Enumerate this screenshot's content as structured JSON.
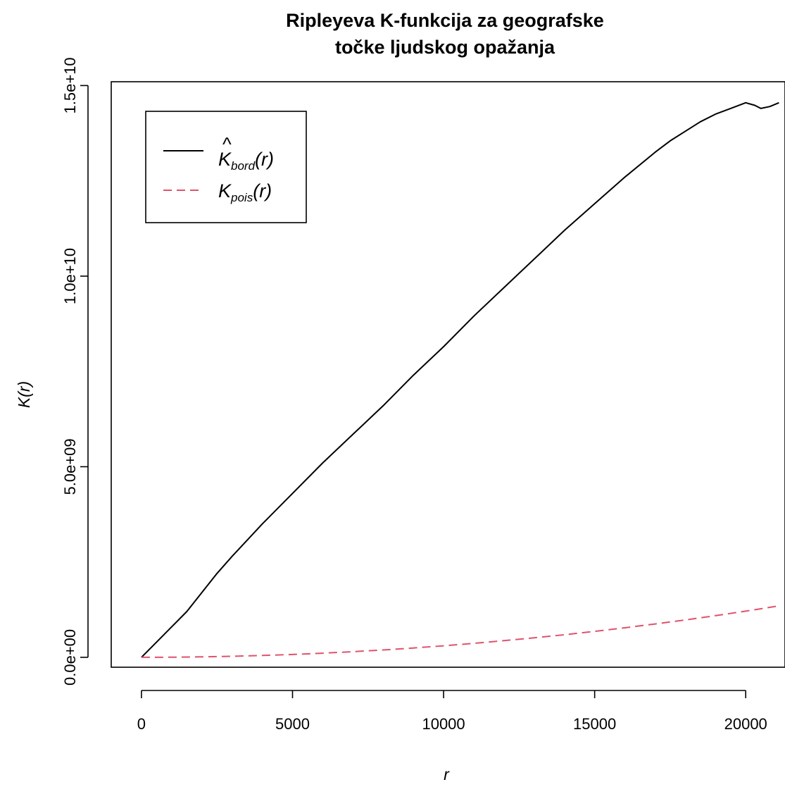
{
  "chart_data": {
    "type": "line",
    "title_lines": [
      "Ripleyeva K-funkcija za geografske",
      "točke ljudskog opažanja"
    ],
    "xlabel": "r",
    "ylabel": "K(r)",
    "xlim": [
      -1000,
      21300
    ],
    "ylim": [
      -260000000.0,
      15100000000.0
    ],
    "x_ticks": [
      0,
      5000,
      10000,
      15000,
      20000
    ],
    "x_tick_labels": [
      "0",
      "5000",
      "10000",
      "15000",
      "20000"
    ],
    "y_ticks": [
      0,
      5000000000,
      10000000000,
      15000000000
    ],
    "y_tick_labels": [
      "0.0e+00",
      "5.0e+09",
      "1.0e+10",
      "1.5e+10"
    ],
    "grid": false,
    "legend_position": "top-left",
    "series": [
      {
        "name": "K̂bord(r)",
        "legend_main": "K",
        "legend_sub": "bord",
        "legend_arg": "(r)",
        "hat": true,
        "color": "#000000",
        "dash": "solid",
        "x": [
          0,
          500,
          1000,
          1500,
          2000,
          2500,
          3000,
          4000,
          5000,
          6000,
          7000,
          8000,
          9000,
          10000,
          11000,
          12000,
          13000,
          14000,
          15000,
          16000,
          17000,
          17500,
          18000,
          18500,
          19000,
          19500,
          20000,
          20300,
          20500,
          20800,
          21100
        ],
        "y": [
          0,
          400000000,
          800000000,
          1200000000,
          1700000000,
          2200000000,
          2650000000,
          3500000000,
          4300000000,
          5100000000,
          5850000000,
          6600000000,
          7400000000,
          8150000000,
          8950000000,
          9700000000,
          10450000000,
          11200000000,
          11900000000,
          12600000000,
          13250000000,
          13550000000,
          13800000000,
          14050000000,
          14250000000,
          14400000000,
          14550000000,
          14480000000,
          14400000000,
          14450000000,
          14550000000
        ]
      },
      {
        "name": "Kpois(r)",
        "legend_main": "K",
        "legend_sub": "pois",
        "legend_arg": "(r)",
        "hat": false,
        "color": "#DF536B",
        "dash": "dashed",
        "x": [
          0,
          1000,
          2000,
          3000,
          4000,
          5000,
          6000,
          7000,
          8000,
          9000,
          10000,
          11000,
          12000,
          13000,
          14000,
          15000,
          16000,
          17000,
          18000,
          19000,
          20000,
          21100
        ],
        "y": [
          0,
          3000000,
          12000000,
          27000000,
          48000000,
          75000000,
          108000000,
          148000000,
          193000000,
          245000000,
          302000000,
          366000000,
          436000000,
          512000000,
          593000000,
          681000000,
          775000000,
          875000000,
          981000000,
          1093000000,
          1211000000,
          1350000000
        ]
      }
    ]
  }
}
